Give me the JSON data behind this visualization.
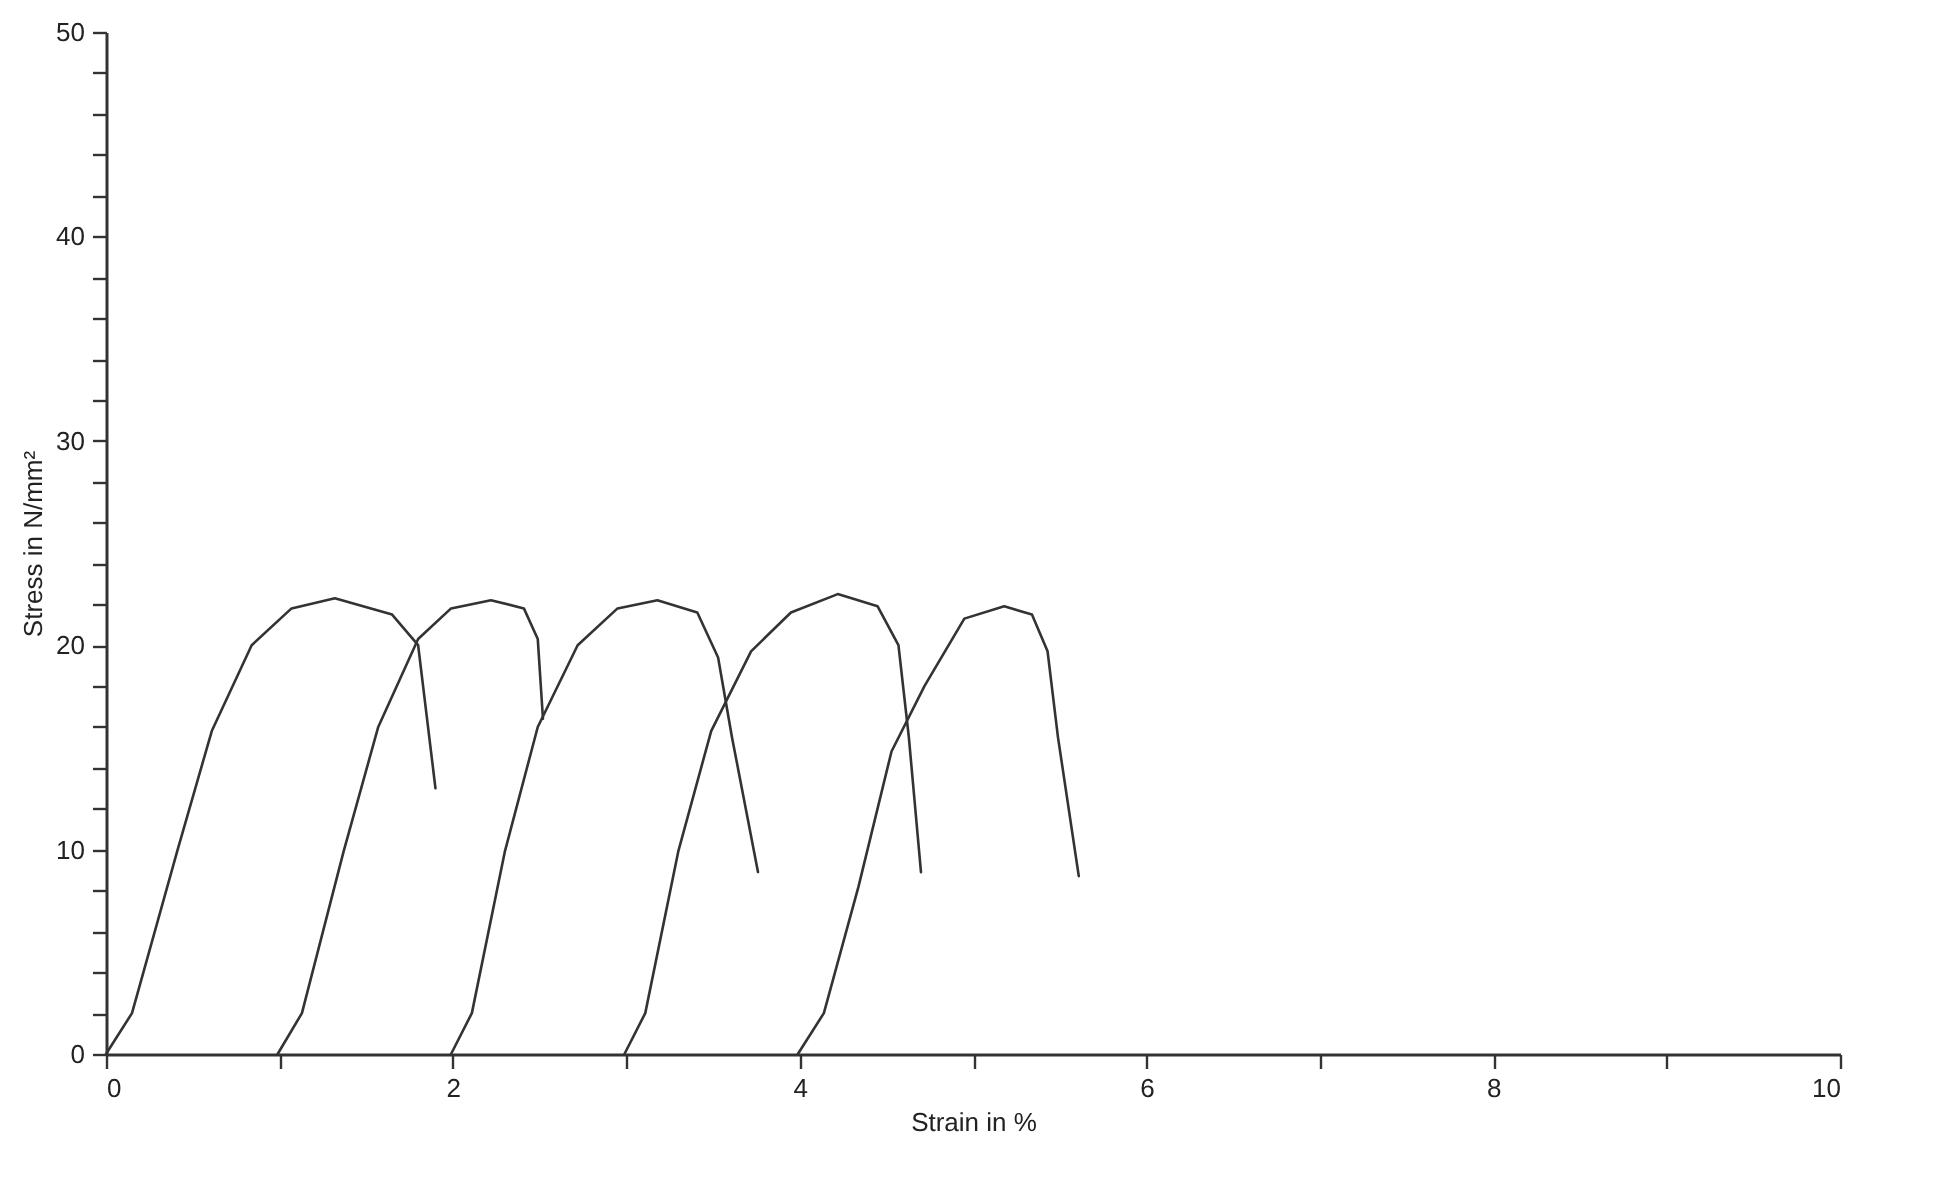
{
  "chart_data": {
    "type": "line",
    "xlabel": "Strain in %",
    "ylabel": "Stress in N/mm²",
    "xlim": [
      0,
      10
    ],
    "ylim": [
      0,
      50
    ],
    "xticks": [
      0,
      {
        "value": 1,
        "label": null
      },
      2,
      {
        "value": 3,
        "label": null
      },
      4,
      {
        "value": 5,
        "label": null
      },
      6,
      {
        "value": 7,
        "label": null
      },
      8,
      {
        "value": 9,
        "label": null
      },
      10
    ],
    "yticks": [
      0,
      {
        "value": 2,
        "label": null
      },
      {
        "value": 4,
        "label": null
      },
      {
        "value": 6,
        "label": null
      },
      {
        "value": 8,
        "label": null
      },
      10,
      {
        "value": 12,
        "label": null
      },
      {
        "value": 14,
        "label": null
      },
      {
        "value": 16,
        "label": null
      },
      {
        "value": 18,
        "label": null
      },
      20,
      {
        "value": 22,
        "label": null
      },
      {
        "value": 24,
        "label": null
      },
      {
        "value": 26,
        "label": null
      },
      {
        "value": 28,
        "label": null
      },
      30,
      {
        "value": 32,
        "label": null
      },
      {
        "value": 34,
        "label": null
      },
      {
        "value": 36,
        "label": null
      },
      {
        "value": 38,
        "label": null
      },
      40,
      {
        "value": 42,
        "label": null
      },
      {
        "value": 44,
        "label": null
      },
      {
        "value": 46,
        "label": null
      },
      {
        "value": 48,
        "label": null
      },
      50
    ],
    "grid": false,
    "legend": false,
    "marker": "none",
    "line_style": "solid",
    "series": [
      {
        "color": "#333333",
        "x": [
          0,
          0.15,
          0.41,
          0.61,
          0.84,
          1.07,
          1.32,
          1.65,
          1.8,
          1.9
        ],
        "values": [
          0,
          2,
          9.9,
          15.8,
          20,
          21.8,
          22.3,
          21.5,
          20,
          13
        ]
      },
      {
        "color": "#333333",
        "x": [
          0.99,
          1.13,
          1.37,
          1.57,
          1.8,
          1.99,
          2.22,
          2.41,
          2.49,
          2.52
        ],
        "values": [
          0,
          2,
          9.9,
          16,
          20.3,
          21.8,
          22.2,
          21.8,
          20.3,
          16.4
        ]
      },
      {
        "color": "#333333",
        "x": [
          1.99,
          2.11,
          2.3,
          2.49,
          2.72,
          2.95,
          3.18,
          3.41,
          3.53,
          3.61,
          3.76
        ],
        "values": [
          0,
          2,
          9.9,
          16,
          20,
          21.8,
          22.2,
          21.6,
          19.4,
          15.5,
          8.9
        ]
      },
      {
        "color": "#333333",
        "x": [
          2.99,
          3.11,
          3.3,
          3.49,
          3.72,
          3.95,
          4.22,
          4.45,
          4.57,
          4.63,
          4.7
        ],
        "values": [
          0,
          2,
          9.9,
          15.8,
          19.7,
          21.6,
          22.5,
          21.9,
          20,
          15.5,
          8.9
        ]
      },
      {
        "color": "#333333",
        "x": [
          3.99,
          4.14,
          4.34,
          4.53,
          4.72,
          4.95,
          5.18,
          5.34,
          5.43,
          5.49,
          5.61
        ],
        "values": [
          0,
          2,
          8.2,
          14.8,
          18,
          21.3,
          21.9,
          21.5,
          19.7,
          15.5,
          8.7
        ]
      }
    ]
  }
}
